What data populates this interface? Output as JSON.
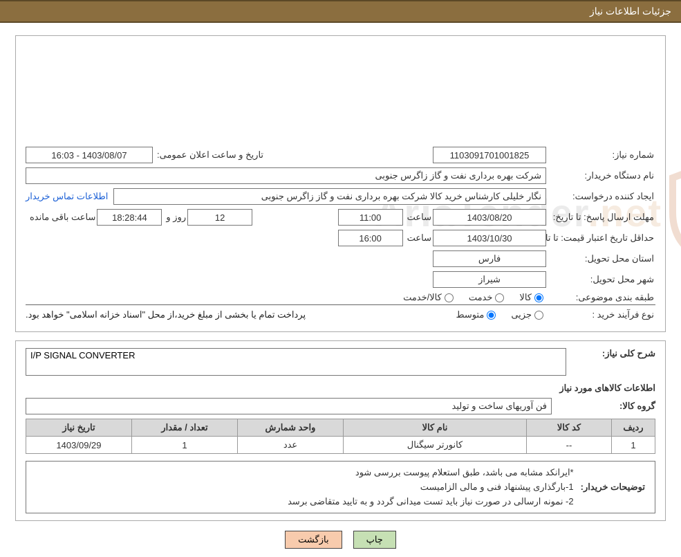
{
  "header": {
    "title": "جزئیات اطلاعات نیاز"
  },
  "section1": {
    "need_no_label": "شماره نیاز:",
    "need_no": "1103091701001825",
    "announce_label": "تاریخ و ساعت اعلان عمومی:",
    "announce_value": "1403/08/07 - 16:03",
    "buyer_label": "نام دستگاه خریدار:",
    "buyer": "شرکت بهره برداری نفت و گاز زاگرس جنوبی",
    "requester_label": "ایجاد کننده درخواست:",
    "requester": "نگار خلیلی کارشناس خرید کالا شرکت بهره برداری نفت و گاز زاگرس جنوبی",
    "contact_link": "اطلاعات تماس خریدار",
    "reply_deadline_label": "مهلت ارسال پاسخ:   تا تاریخ:",
    "reply_deadline_date": "1403/08/20",
    "time_label": "ساعت",
    "reply_deadline_time": "11:00",
    "days_label": "روز و",
    "days_value": "12",
    "hms_value": "18:28:44",
    "remain_label": "ساعت باقی مانده",
    "price_valid_label": "حداقل تاریخ اعتبار قیمت: تا تاریخ:",
    "price_valid_date": "1403/10/30",
    "price_valid_time": "16:00",
    "province_label": "استان محل تحویل:",
    "province": "فارس",
    "city_label": "شهر محل تحویل:",
    "city": "شیراز",
    "category_label": "طبقه بندی موضوعی:",
    "cat_opt1": "کالا",
    "cat_opt2": "خدمت",
    "cat_opt3": "کالا/خدمت",
    "process_label": "نوع فرآیند خرید :",
    "proc_opt1": "جزیی",
    "proc_opt2": "متوسط",
    "payment_note": "پرداخت تمام یا بخشی از مبلغ خرید،از محل \"اسناد خزانه اسلامی\" خواهد بود."
  },
  "section2": {
    "need_desc_label": "شرح کلی نیاز:",
    "need_desc": "I/P SIGNAL CONVERTER",
    "items_header": "اطلاعات کالاهای مورد نیاز",
    "group_label": "گروه کالا:",
    "group_value": "فن آوریهای ساخت و تولید",
    "table": {
      "columns": [
        "ردیف",
        "کد کالا",
        "نام کالا",
        "واحد شمارش",
        "تعداد / مقدار",
        "تاریخ نیاز"
      ],
      "widths": [
        "50px",
        "110px",
        "auto",
        "140px",
        "140px",
        "140px"
      ],
      "rows": [
        [
          "1",
          "--",
          "کانورتر سیگنال",
          "عدد",
          "1",
          "1403/09/29"
        ]
      ]
    },
    "buyer_notes_label": "توضیحات خریدار:",
    "buyer_notes": "*ایرانکد مشابه می باشد، طبق استعلام پیوست بررسی شود\n1-بارگذاری پیشنهاد فنی و مالی الزامیست\n2- نمونه ارسالی در صورت نیاز باید تست میدانی گردد و به تایید متقاضی برسد"
  },
  "buttons": {
    "print": "چاپ",
    "back": "بازگشت"
  },
  "watermark": {
    "text1": "AriaTender",
    "text2": ".net"
  },
  "colors": {
    "header_bg": "#8b6e3f",
    "header_border": "#5b4826",
    "btn_print": "#c6e0b4",
    "btn_back": "#f8cbad",
    "link": "#1a5fd6",
    "wm_shield_stroke": "#d54d3a",
    "wm_gray": "#c8c8c8"
  }
}
